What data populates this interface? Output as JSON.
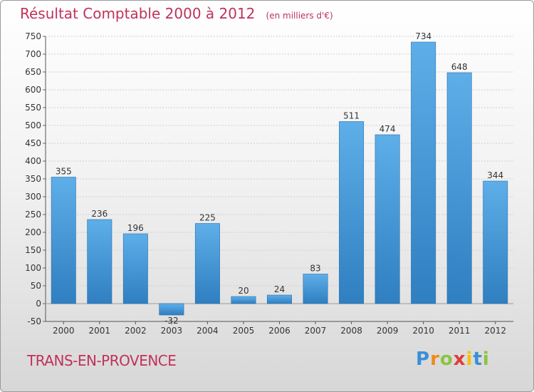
{
  "header": {
    "title": "Résultat Comptable 2000 à 2012",
    "unit": "(en milliers d'€)"
  },
  "footer": {
    "place": "TRANS-EN-PROVENCE",
    "logo_letters": [
      {
        "char": "P",
        "color": "#3a8fd8"
      },
      {
        "char": "r",
        "color": "#f08a1c"
      },
      {
        "char": "o",
        "color": "#8bc43f"
      },
      {
        "char": "x",
        "color": "#e23a3a"
      },
      {
        "char": "i",
        "color": "#f2c200"
      },
      {
        "char": "t",
        "color": "#3a8fd8"
      },
      {
        "char": "i",
        "color": "#8bc43f"
      }
    ]
  },
  "chart_data": {
    "type": "bar",
    "title": "Résultat Comptable 2000 à 2012",
    "subtitle": "(en milliers d'€)",
    "categories": [
      "2000",
      "2001",
      "2002",
      "2003",
      "2004",
      "2005",
      "2006",
      "2007",
      "2008",
      "2009",
      "2010",
      "2011",
      "2012"
    ],
    "values": [
      355,
      236,
      196,
      -32,
      225,
      20,
      24,
      83,
      511,
      474,
      734,
      648,
      344
    ],
    "ylim": [
      -50,
      750
    ],
    "yticks": [
      -50,
      0,
      50,
      100,
      150,
      200,
      250,
      300,
      350,
      400,
      450,
      500,
      550,
      600,
      650,
      700,
      750
    ],
    "grid": true,
    "bar_color_top": "#5eaee9",
    "bar_color_bottom": "#2f7fc1"
  }
}
